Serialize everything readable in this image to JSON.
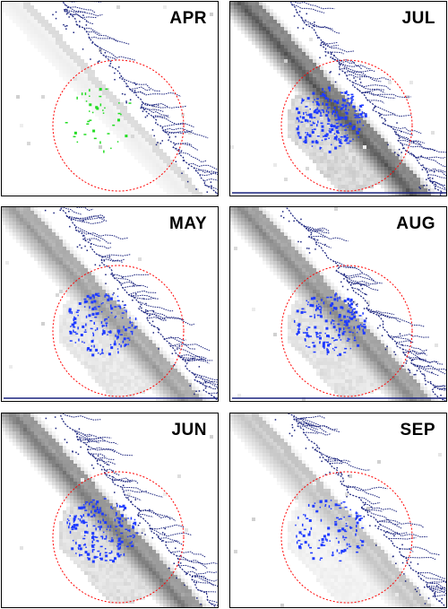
{
  "panels": [
    {
      "id": "apr",
      "label": "APR",
      "points": "green",
      "shade": 0.1,
      "blue_line": false
    },
    {
      "id": "jul",
      "label": "JUL",
      "points": "blue",
      "shade": 1.0,
      "blue_line": true
    },
    {
      "id": "may",
      "label": "MAY",
      "points": "blue",
      "shade": 0.6,
      "blue_line": true
    },
    {
      "id": "aug",
      "label": "AUG",
      "points": "blue",
      "shade": 0.7,
      "blue_line": true
    },
    {
      "id": "jun",
      "label": "JUN",
      "points": "blue",
      "shade": 0.8,
      "blue_line": false
    },
    {
      "id": "sep",
      "label": "SEP",
      "points": "blue",
      "shade": 0.35,
      "blue_line": false
    }
  ],
  "colors": {
    "coast": "#1a237e",
    "circle": "#ff0000",
    "green_points": "#22dd22",
    "blue_points": "#1f3bff",
    "shade": "#888888"
  }
}
